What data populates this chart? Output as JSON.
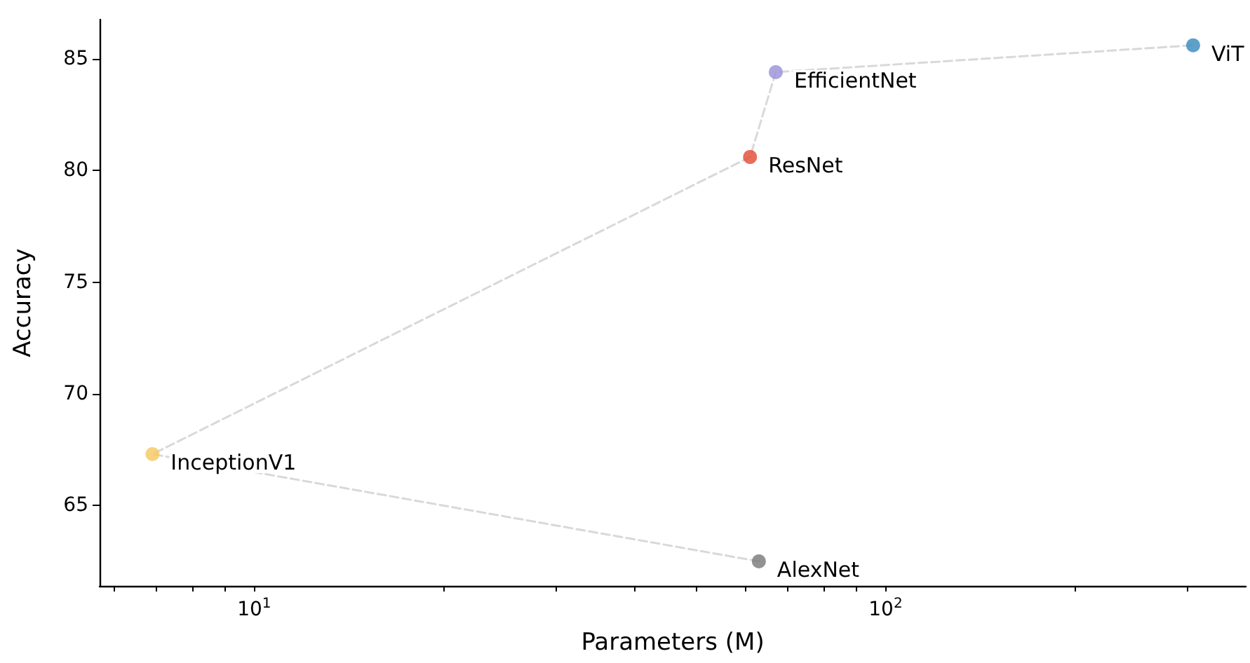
{
  "chart_data": {
    "type": "scatter",
    "xlabel": "Parameters (M)",
    "ylabel": "Accuracy",
    "log": "x",
    "grid": false,
    "xlim": [
      5.69,
      372
    ],
    "ylim": [
      61.4,
      86.75
    ],
    "xticks": [
      {
        "value": 6,
        "label": null
      },
      {
        "value": 7,
        "label": null
      },
      {
        "value": 8,
        "label": null
      },
      {
        "value": 9,
        "label": null
      },
      {
        "value": 10,
        "label": "10$^{1}$"
      },
      {
        "value": 20,
        "label": null
      },
      {
        "value": 30,
        "label": null
      },
      {
        "value": 40,
        "label": null
      },
      {
        "value": 50,
        "label": null
      },
      {
        "value": 60,
        "label": null
      },
      {
        "value": 70,
        "label": null
      },
      {
        "value": 80,
        "label": null
      },
      {
        "value": 90,
        "label": null
      },
      {
        "value": 100,
        "label": "10$^{2}$"
      },
      {
        "value": 200,
        "label": null
      },
      {
        "value": 300,
        "label": null
      }
    ],
    "yticks": [
      65,
      70,
      75,
      80,
      85
    ],
    "series": [
      {
        "type": "line",
        "color": "#d9d9d9",
        "line_style": "dashed",
        "marker": "none",
        "x": [
          63,
          6.9,
          61,
          67,
          307
        ],
        "values": [
          62.5,
          67.3,
          80.6,
          84.4,
          85.6
        ]
      },
      {
        "type": "scatter",
        "marker": "circle",
        "colors": [
          "#f6c85f",
          "#777777",
          "#e24a33",
          "#988ed5",
          "#348abd"
        ],
        "x": [
          6.9,
          63,
          61,
          67,
          307
        ],
        "values": [
          67.3,
          62.5,
          80.6,
          84.4,
          85.6
        ]
      }
    ],
    "annotations": [
      {
        "text": "InceptionV1",
        "x": 6.9,
        "y": 67.3
      },
      {
        "text": "AlexNet",
        "x": 63,
        "y": 62.5
      },
      {
        "text": "ResNet",
        "x": 61,
        "y": 80.6
      },
      {
        "text": "EfficientNet",
        "x": 67,
        "y": 84.4
      },
      {
        "text": "ViT",
        "x": 307,
        "y": 85.6
      }
    ]
  }
}
